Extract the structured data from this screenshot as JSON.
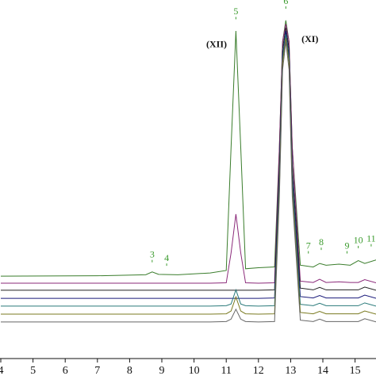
{
  "chart_data": {
    "type": "line",
    "x": [
      4,
      7,
      8.5,
      8.7,
      8.9,
      9.5,
      10.5,
      11.0,
      11.15,
      11.3,
      11.45,
      11.6,
      12.0,
      12.5,
      12.65,
      12.75,
      12.85,
      12.95,
      13.05,
      13.3,
      13.7,
      13.9,
      14.1,
      14.5,
      14.85,
      15.1,
      15.3,
      15.65
    ],
    "series": [
      {
        "color": "#3a7d2c",
        "values": [
          23.4,
          23.5,
          23.8,
          24.6,
          23.9,
          23.8,
          24.3,
          25,
          60,
          93,
          60,
          25.5,
          25.8,
          26,
          60,
          90,
          96,
          90,
          60,
          26.5,
          26,
          27,
          26.5,
          26.8,
          26.5,
          27.8,
          27,
          28
        ]
      },
      {
        "color": "#8b2a7a",
        "values": [
          21.4,
          21.4,
          21.4,
          21.4,
          21.4,
          21.4,
          21.4,
          21.5,
          30,
          41,
          30,
          21.5,
          21.4,
          21.5,
          60,
          90,
          95,
          90,
          60,
          22,
          21.6,
          22.5,
          21.6,
          21.8,
          21.6,
          21.6,
          22.4,
          21.5
        ]
      },
      {
        "color": "#222222",
        "values": [
          19.4,
          19.4,
          19.4,
          19.4,
          19.4,
          19.4,
          19.4,
          19.4,
          19.4,
          19.4,
          19.4,
          19.4,
          19.4,
          19.5,
          55,
          88,
          94,
          88,
          55,
          20,
          19.5,
          20.2,
          19.5,
          19.5,
          19.5,
          19.5,
          20.3,
          19.4
        ]
      },
      {
        "color": "#1a1a7a",
        "values": [
          17.1,
          17.1,
          17.1,
          17.1,
          17.1,
          17.1,
          17.1,
          17.1,
          17.1,
          17.1,
          17.1,
          17.1,
          17.1,
          17.2,
          52,
          86,
          93,
          86,
          52,
          17.6,
          17.2,
          17.9,
          17.2,
          17.2,
          17.2,
          17.2,
          18,
          17.1
        ]
      },
      {
        "color": "#2a7a7a",
        "values": [
          14.9,
          14.9,
          14.9,
          14.9,
          14.9,
          14.9,
          14.9,
          15,
          15.5,
          19.5,
          15.5,
          15,
          14.9,
          15,
          50,
          85,
          92,
          85,
          50,
          15.4,
          15,
          15.7,
          15,
          15,
          15,
          15,
          15.8,
          14.9
        ]
      },
      {
        "color": "#7a7a20",
        "values": [
          12.6,
          12.6,
          12.6,
          12.6,
          12.6,
          12.6,
          12.6,
          12.7,
          13.5,
          17.5,
          13.5,
          12.7,
          12.6,
          12.7,
          48,
          84,
          91,
          84,
          48,
          13.1,
          12.7,
          13.4,
          12.7,
          12.7,
          12.7,
          12.7,
          13.5,
          12.6
        ]
      },
      {
        "color": "#666666",
        "values": [
          10.4,
          10.4,
          10.4,
          10.4,
          10.4,
          10.4,
          10.4,
          10.5,
          11.2,
          14,
          11.2,
          10.5,
          10.4,
          10.5,
          46,
          82,
          90,
          82,
          46,
          10.9,
          10.5,
          11.2,
          10.5,
          10.5,
          10.5,
          10.5,
          11.3,
          10.4
        ]
      }
    ],
    "xlim": [
      4,
      15.65
    ],
    "ylim": [
      0,
      100
    ],
    "xticks": [
      4,
      5,
      6,
      7,
      8,
      9,
      10,
      11,
      12,
      13,
      14,
      15
    ],
    "peak_labels": [
      {
        "label": "3",
        "x": 8.7,
        "y": 28
      },
      {
        "label": "4",
        "x": 9.15,
        "y": 27
      },
      {
        "label": "5",
        "x": 11.3,
        "y": 97
      },
      {
        "label": "6",
        "x": 12.85,
        "y": 100
      },
      {
        "label": "7",
        "x": 13.55,
        "y": 30.5
      },
      {
        "label": "8",
        "x": 13.95,
        "y": 31.5
      },
      {
        "label": "9",
        "x": 14.75,
        "y": 30.5
      },
      {
        "label": "10",
        "x": 15.1,
        "y": 32
      },
      {
        "label": "11",
        "x": 15.5,
        "y": 32.5
      }
    ],
    "annotations": [
      {
        "text": "(XII)",
        "x": 10.7,
        "y": 89
      },
      {
        "text": "(XI)",
        "x": 13.6,
        "y": 90.5
      }
    ]
  }
}
